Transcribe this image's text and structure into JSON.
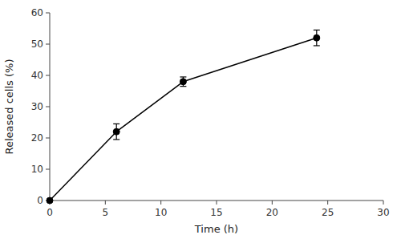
{
  "chart_data": {
    "type": "line",
    "x": [
      0,
      6,
      12,
      24
    ],
    "values": [
      0,
      22.0,
      38.0,
      52.0
    ],
    "errors": [
      0,
      2.5,
      1.5,
      2.5
    ],
    "color": "#000000",
    "marker": "circle",
    "xlabel": "Time (h)",
    "ylabel": "Released cells (%)",
    "xlim": [
      0,
      30
    ],
    "ylim": [
      0,
      60
    ],
    "xticks": [
      0,
      5,
      10,
      15,
      20,
      25,
      30
    ],
    "yticks": [
      0,
      10,
      20,
      30,
      40,
      50,
      60
    ],
    "grid": false
  }
}
